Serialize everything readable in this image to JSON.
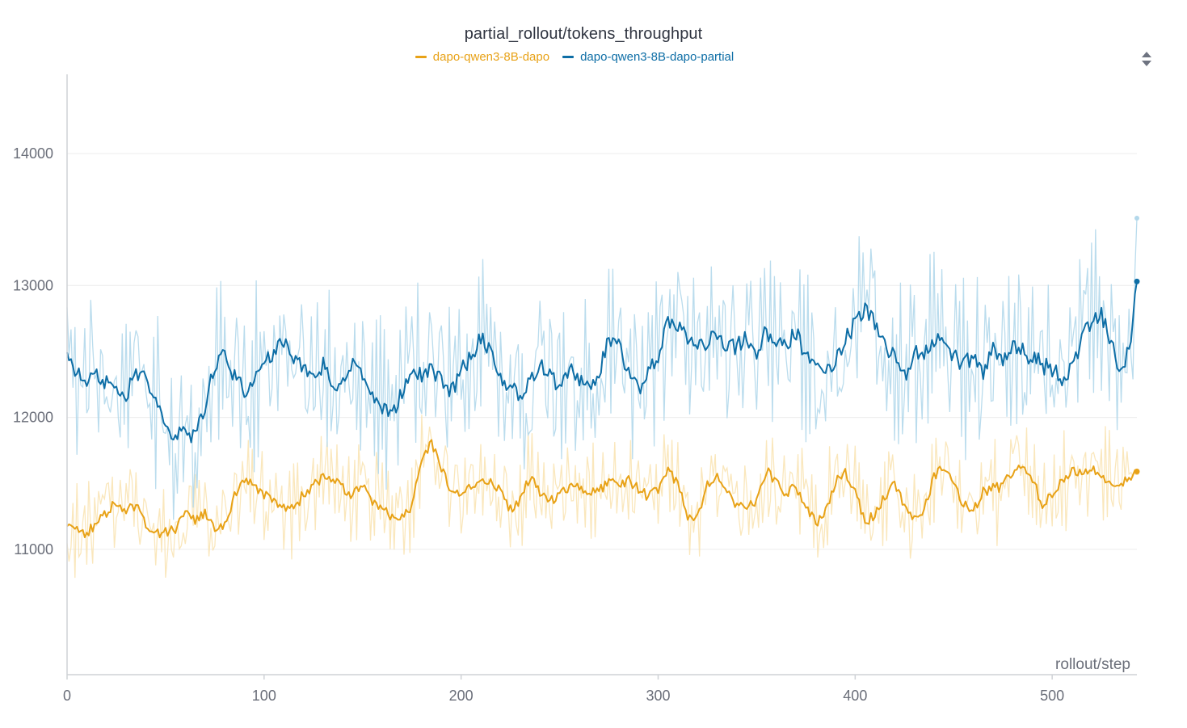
{
  "chart_data": {
    "type": "line",
    "title": "partial_rollout/tokens_throughput",
    "xlabel": "rollout/step",
    "ylabel": "",
    "xlim": [
      0,
      543
    ],
    "ylim": [
      10050,
      14600
    ],
    "x_ticks": [
      0,
      100,
      200,
      300,
      400,
      500
    ],
    "y_ticks": [
      11000,
      12000,
      13000,
      14000
    ],
    "grid": true,
    "legend_position": "top-center",
    "steps": 543,
    "series": [
      {
        "name": "dapo-qwen3-8B-dapo",
        "color": "#e8a217",
        "raw_color": "#f8dfa5",
        "smoothed_anchors": [
          [
            0,
            11170
          ],
          [
            5,
            11150
          ],
          [
            10,
            11120
          ],
          [
            15,
            11200
          ],
          [
            20,
            11280
          ],
          [
            25,
            11360
          ],
          [
            30,
            11300
          ],
          [
            35,
            11320
          ],
          [
            40,
            11200
          ],
          [
            45,
            11120
          ],
          [
            50,
            11130
          ],
          [
            55,
            11150
          ],
          [
            60,
            11300
          ],
          [
            65,
            11230
          ],
          [
            70,
            11280
          ],
          [
            75,
            11150
          ],
          [
            80,
            11200
          ],
          [
            85,
            11400
          ],
          [
            90,
            11520
          ],
          [
            95,
            11490
          ],
          [
            100,
            11420
          ],
          [
            105,
            11370
          ],
          [
            110,
            11320
          ],
          [
            115,
            11300
          ],
          [
            120,
            11420
          ],
          [
            125,
            11480
          ],
          [
            130,
            11560
          ],
          [
            135,
            11540
          ],
          [
            140,
            11460
          ],
          [
            145,
            11400
          ],
          [
            150,
            11500
          ],
          [
            155,
            11350
          ],
          [
            160,
            11330
          ],
          [
            165,
            11240
          ],
          [
            170,
            11230
          ],
          [
            175,
            11320
          ],
          [
            180,
            11700
          ],
          [
            185,
            11800
          ],
          [
            190,
            11600
          ],
          [
            195,
            11450
          ],
          [
            200,
            11380
          ],
          [
            205,
            11470
          ],
          [
            210,
            11520
          ],
          [
            215,
            11500
          ],
          [
            220,
            11450
          ],
          [
            225,
            11300
          ],
          [
            230,
            11380
          ],
          [
            235,
            11550
          ],
          [
            240,
            11420
          ],
          [
            245,
            11360
          ],
          [
            250,
            11420
          ],
          [
            255,
            11480
          ],
          [
            260,
            11480
          ],
          [
            265,
            11420
          ],
          [
            270,
            11440
          ],
          [
            275,
            11520
          ],
          [
            280,
            11480
          ],
          [
            285,
            11530
          ],
          [
            290,
            11460
          ],
          [
            295,
            11400
          ],
          [
            300,
            11450
          ],
          [
            305,
            11600
          ],
          [
            310,
            11500
          ],
          [
            315,
            11250
          ],
          [
            320,
            11250
          ],
          [
            325,
            11480
          ],
          [
            330,
            11560
          ],
          [
            335,
            11420
          ],
          [
            340,
            11340
          ],
          [
            345,
            11320
          ],
          [
            350,
            11380
          ],
          [
            355,
            11600
          ],
          [
            360,
            11500
          ],
          [
            365,
            11420
          ],
          [
            370,
            11480
          ],
          [
            375,
            11320
          ],
          [
            380,
            11200
          ],
          [
            385,
            11280
          ],
          [
            390,
            11520
          ],
          [
            395,
            11580
          ],
          [
            400,
            11450
          ],
          [
            405,
            11200
          ],
          [
            410,
            11270
          ],
          [
            415,
            11400
          ],
          [
            420,
            11500
          ],
          [
            425,
            11330
          ],
          [
            430,
            11220
          ],
          [
            435,
            11300
          ],
          [
            440,
            11550
          ],
          [
            445,
            11640
          ],
          [
            450,
            11500
          ],
          [
            455,
            11330
          ],
          [
            460,
            11300
          ],
          [
            465,
            11430
          ],
          [
            470,
            11460
          ],
          [
            475,
            11480
          ],
          [
            480,
            11600
          ],
          [
            485,
            11640
          ],
          [
            490,
            11520
          ],
          [
            495,
            11350
          ],
          [
            500,
            11420
          ],
          [
            505,
            11520
          ],
          [
            510,
            11600
          ],
          [
            515,
            11560
          ],
          [
            520,
            11600
          ],
          [
            525,
            11560
          ],
          [
            530,
            11500
          ],
          [
            535,
            11480
          ],
          [
            540,
            11560
          ],
          [
            543,
            11580
          ]
        ],
        "raw_amplitude": 360,
        "last_raw": 11580,
        "last_smoothed": 11590
      },
      {
        "name": "dapo-qwen3-8B-dapo-partial",
        "color": "#0e6ea6",
        "raw_color": "#b3d8eb",
        "smoothed_anchors": [
          [
            0,
            12480
          ],
          [
            5,
            12340
          ],
          [
            10,
            12300
          ],
          [
            15,
            12320
          ],
          [
            20,
            12250
          ],
          [
            25,
            12180
          ],
          [
            30,
            12150
          ],
          [
            35,
            12360
          ],
          [
            40,
            12300
          ],
          [
            45,
            12150
          ],
          [
            50,
            11950
          ],
          [
            55,
            11850
          ],
          [
            60,
            11900
          ],
          [
            65,
            11850
          ],
          [
            70,
            12100
          ],
          [
            75,
            12400
          ],
          [
            80,
            12480
          ],
          [
            85,
            12300
          ],
          [
            90,
            12200
          ],
          [
            95,
            12250
          ],
          [
            100,
            12420
          ],
          [
            105,
            12500
          ],
          [
            110,
            12600
          ],
          [
            115,
            12450
          ],
          [
            120,
            12380
          ],
          [
            125,
            12300
          ],
          [
            130,
            12400
          ],
          [
            135,
            12250
          ],
          [
            140,
            12280
          ],
          [
            145,
            12400
          ],
          [
            150,
            12300
          ],
          [
            155,
            12200
          ],
          [
            160,
            12050
          ],
          [
            165,
            12050
          ],
          [
            170,
            12180
          ],
          [
            175,
            12400
          ],
          [
            180,
            12300
          ],
          [
            185,
            12350
          ],
          [
            190,
            12300
          ],
          [
            195,
            12200
          ],
          [
            200,
            12350
          ],
          [
            205,
            12450
          ],
          [
            210,
            12600
          ],
          [
            215,
            12480
          ],
          [
            220,
            12300
          ],
          [
            225,
            12250
          ],
          [
            230,
            12150
          ],
          [
            235,
            12250
          ],
          [
            240,
            12450
          ],
          [
            245,
            12300
          ],
          [
            250,
            12250
          ],
          [
            255,
            12350
          ],
          [
            260,
            12300
          ],
          [
            265,
            12250
          ],
          [
            270,
            12350
          ],
          [
            275,
            12600
          ],
          [
            280,
            12550
          ],
          [
            285,
            12350
          ],
          [
            290,
            12200
          ],
          [
            295,
            12350
          ],
          [
            300,
            12450
          ],
          [
            305,
            12720
          ],
          [
            310,
            12700
          ],
          [
            315,
            12600
          ],
          [
            320,
            12550
          ],
          [
            325,
            12580
          ],
          [
            330,
            12650
          ],
          [
            335,
            12500
          ],
          [
            340,
            12550
          ],
          [
            345,
            12600
          ],
          [
            350,
            12500
          ],
          [
            355,
            12650
          ],
          [
            360,
            12600
          ],
          [
            365,
            12550
          ],
          [
            370,
            12650
          ],
          [
            375,
            12450
          ],
          [
            380,
            12350
          ],
          [
            385,
            12350
          ],
          [
            390,
            12450
          ],
          [
            395,
            12600
          ],
          [
            400,
            12700
          ],
          [
            405,
            12850
          ],
          [
            410,
            12700
          ],
          [
            415,
            12550
          ],
          [
            420,
            12450
          ],
          [
            425,
            12300
          ],
          [
            430,
            12500
          ],
          [
            435,
            12450
          ],
          [
            440,
            12600
          ],
          [
            445,
            12550
          ],
          [
            450,
            12480
          ],
          [
            455,
            12400
          ],
          [
            460,
            12450
          ],
          [
            465,
            12350
          ],
          [
            470,
            12500
          ],
          [
            475,
            12450
          ],
          [
            480,
            12550
          ],
          [
            485,
            12500
          ],
          [
            490,
            12450
          ],
          [
            495,
            12400
          ],
          [
            500,
            12350
          ],
          [
            505,
            12300
          ],
          [
            510,
            12350
          ],
          [
            515,
            12600
          ],
          [
            520,
            12750
          ],
          [
            525,
            12780
          ],
          [
            530,
            12550
          ],
          [
            535,
            12300
          ],
          [
            540,
            12600
          ],
          [
            543,
            13030
          ]
        ],
        "raw_amplitude": 620,
        "last_raw": 13510,
        "last_smoothed": 13030
      }
    ]
  },
  "controls": {
    "sort_icon": "sort-arrows-icon"
  }
}
